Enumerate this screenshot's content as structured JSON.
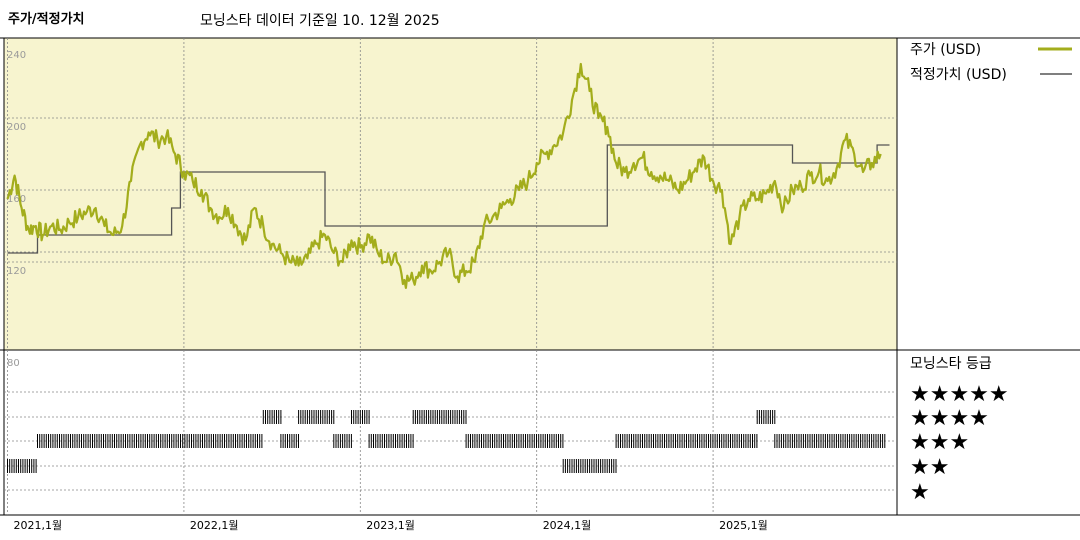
{
  "header": {
    "left_title": "주가/적정가치",
    "center_title": "모닝스타 데이터 기준일 10. 12월 2025"
  },
  "legend": {
    "price_label": "주가 (USD)",
    "fair_label": "적정가치 (USD)",
    "rating_title": "모닝스타 등급"
  },
  "colors": {
    "panel_bg": "#f7f4cf",
    "price_line": "#a3ad1c",
    "fair_line": "#555555",
    "grid": "#888888",
    "axis": "#000000"
  },
  "chart_data": {
    "type": "line",
    "title": "",
    "y_ticks": [
      240,
      200,
      160,
      120
    ],
    "y_ticks_lower": [
      80
    ],
    "ylim": [
      100,
      240
    ],
    "x_tick_labels": [
      "2021,1월",
      "2022,1월",
      "2023,1월",
      "2024,1월",
      "2025,1월"
    ],
    "x_ticks": [
      2021.0,
      2022.0,
      2023.0,
      2024.0,
      2025.0
    ],
    "xlim": [
      2020.98,
      2026.02
    ],
    "series": [
      {
        "name": "주가 (USD)",
        "x": [
          2021.0,
          2021.04,
          2021.08,
          2021.12,
          2021.16,
          2021.2,
          2021.25,
          2021.3,
          2021.35,
          2021.4,
          2021.45,
          2021.5,
          2021.55,
          2021.6,
          2021.65,
          2021.7,
          2021.75,
          2021.8,
          2021.85,
          2021.9,
          2021.95,
          2022.0,
          2022.05,
          2022.1,
          2022.15,
          2022.2,
          2022.25,
          2022.3,
          2022.35,
          2022.4,
          2022.45,
          2022.5,
          2022.55,
          2022.6,
          2022.65,
          2022.7,
          2022.75,
          2022.8,
          2022.85,
          2022.9,
          2022.95,
          2023.0,
          2023.05,
          2023.1,
          2023.15,
          2023.2,
          2023.25,
          2023.3,
          2023.35,
          2023.4,
          2023.45,
          2023.5,
          2023.55,
          2023.6,
          2023.65,
          2023.7,
          2023.75,
          2023.8,
          2023.85,
          2023.9,
          2023.95,
          2024.0,
          2024.05,
          2024.1,
          2024.15,
          2024.2,
          2024.25,
          2024.3,
          2024.35,
          2024.4,
          2024.45,
          2024.5,
          2024.55,
          2024.6,
          2024.65,
          2024.7,
          2024.75,
          2024.8,
          2024.85,
          2024.9,
          2024.95,
          2025.0,
          2025.05,
          2025.1,
          2025.15,
          2025.2,
          2025.25,
          2025.3,
          2025.35,
          2025.4,
          2025.45,
          2025.5,
          2025.55,
          2025.6,
          2025.65,
          2025.7,
          2025.75,
          2025.8,
          2025.85,
          2025.9,
          2025.95
        ],
        "values": [
          155,
          168,
          150,
          138,
          140,
          135,
          140,
          138,
          142,
          145,
          148,
          150,
          140,
          135,
          140,
          165,
          185,
          192,
          188,
          190,
          180,
          170,
          165,
          160,
          150,
          145,
          150,
          140,
          132,
          150,
          140,
          130,
          125,
          120,
          118,
          122,
          130,
          135,
          125,
          120,
          132,
          128,
          135,
          125,
          120,
          125,
          110,
          110,
          118,
          115,
          120,
          125,
          112,
          115,
          120,
          140,
          145,
          150,
          155,
          160,
          165,
          175,
          180,
          185,
          192,
          210,
          230,
          215,
          200,
          195,
          175,
          170,
          175,
          178,
          170,
          168,
          165,
          160,
          165,
          172,
          178,
          165,
          160,
          130,
          145,
          155,
          155,
          158,
          165,
          150,
          160,
          162,
          168,
          170,
          165,
          172,
          188,
          180,
          170,
          175,
          180
        ]
      },
      {
        "name": "적정가치 (USD)",
        "step_x": [
          2021.0,
          2021.17,
          2021.17,
          2021.93,
          2021.93,
          2021.98,
          2021.98,
          2022.8,
          2022.8,
          2024.4,
          2024.4,
          2025.45,
          2025.45,
          2025.93,
          2025.93,
          2026.0
        ],
        "step_values": [
          125,
          125,
          135,
          135,
          150,
          150,
          170,
          170,
          140,
          140,
          185,
          185,
          175,
          175,
          185,
          185
        ]
      }
    ],
    "rating_rows": [
      "★★★★★",
      "★★★★",
      "★★★",
      "★★",
      "★"
    ],
    "ratings": [
      {
        "from": 2021.0,
        "to": 2021.17,
        "stars": 2
      },
      {
        "from": 2021.17,
        "to": 2022.45,
        "stars": 3
      },
      {
        "from": 2022.45,
        "to": 2022.55,
        "stars": 4
      },
      {
        "from": 2022.55,
        "to": 2022.65,
        "stars": 3
      },
      {
        "from": 2022.65,
        "to": 2022.85,
        "stars": 4
      },
      {
        "from": 2022.85,
        "to": 2022.95,
        "stars": 3
      },
      {
        "from": 2022.95,
        "to": 2023.05,
        "stars": 4
      },
      {
        "from": 2023.05,
        "to": 2023.3,
        "stars": 3
      },
      {
        "from": 2023.3,
        "to": 2023.6,
        "stars": 4
      },
      {
        "from": 2023.6,
        "to": 2024.15,
        "stars": 3
      },
      {
        "from": 2024.15,
        "to": 2024.45,
        "stars": 2
      },
      {
        "from": 2024.45,
        "to": 2025.25,
        "stars": 3
      },
      {
        "from": 2025.25,
        "to": 2025.35,
        "stars": 4
      },
      {
        "from": 2025.35,
        "to": 2025.98,
        "stars": 3
      }
    ]
  }
}
